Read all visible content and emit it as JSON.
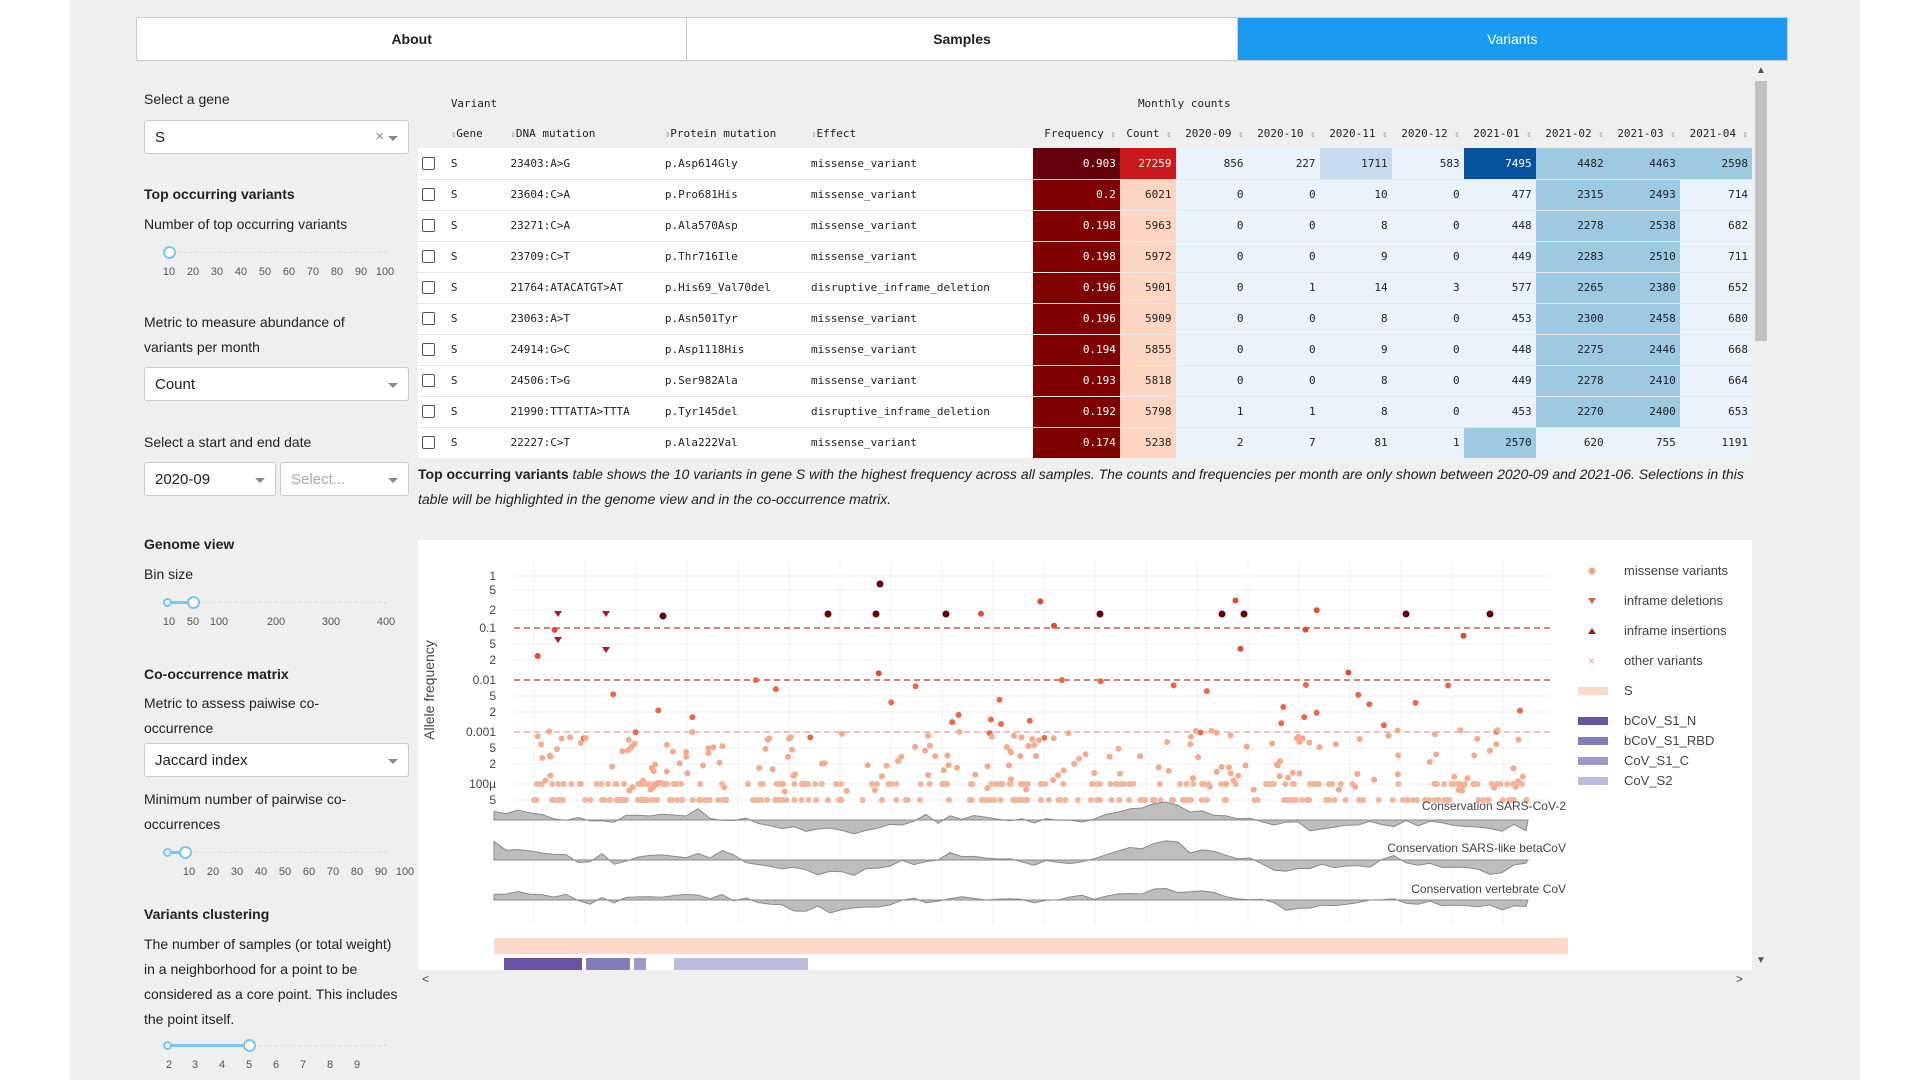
{
  "tabs": [
    {
      "label": "About",
      "active": false
    },
    {
      "label": "Samples",
      "active": false
    },
    {
      "label": "Variants",
      "active": true
    }
  ],
  "sidebar": {
    "gene_label": "Select a gene",
    "gene_value": "S",
    "gene_clear": "×",
    "top_header": "Top occurring variants",
    "top_number_label": "Number of top occurring variants",
    "top_ticks": [
      "10",
      "20",
      "30",
      "40",
      "50",
      "60",
      "70",
      "80",
      "90",
      "100"
    ],
    "top_value": 10,
    "metric_label": "Metric to measure abundance of variants per month",
    "metric_value": "Count",
    "date_label": "Select a start and end date",
    "date_start": "2020-09",
    "date_end_placeholder": "Select...",
    "genome_header": "Genome view",
    "bin_label": "Bin size",
    "bin_ticks": [
      "10",
      "50",
      "100",
      "200",
      "300",
      "400"
    ],
    "bin_value": 50,
    "cooc_header": "Co-occurrence matrix",
    "cooc_metric_label": "Metric to assess paiwise co-occurrence",
    "cooc_metric_value": "Jaccard index",
    "cooc_min_label": "Minimum number of pairwise co-occurrences",
    "cooc_ticks": [
      "10",
      "20",
      "30",
      "40",
      "50",
      "60",
      "70",
      "80",
      "90",
      "100"
    ],
    "cooc_value": 10,
    "cluster_header": "Variants clustering",
    "cluster_label": "The number of samples (or total weight) in a neighborhood for a point to be considered as a core point. This includes the point itself.",
    "cluster_ticks": [
      "2",
      "3",
      "4",
      "5",
      "6",
      "7",
      "8",
      "9"
    ],
    "cluster_value": 5
  },
  "table": {
    "group_variant": "Variant",
    "group_monthly": "Monthly counts",
    "columns": [
      "Gene",
      "DNA mutation",
      "Protein mutation",
      "Effect",
      "Frequency",
      "Count",
      "2020-09",
      "2020-10",
      "2020-11",
      "2020-12",
      "2021-01",
      "2021-02",
      "2021-03",
      "2021-04"
    ],
    "rows": [
      {
        "gene": "S",
        "dna": "23403:A>G",
        "protein": "p.Asp614Gly",
        "effect": "missense_variant",
        "freq": "0.903",
        "count": "27259",
        "months": [
          "856",
          "227",
          "1711",
          "583",
          "7495",
          "4482",
          "4463",
          "2598"
        ]
      },
      {
        "gene": "S",
        "dna": "23604:C>A",
        "protein": "p.Pro681His",
        "effect": "missense_variant",
        "freq": "0.2",
        "count": "6021",
        "months": [
          "0",
          "0",
          "10",
          "0",
          "477",
          "2315",
          "2493",
          "714"
        ]
      },
      {
        "gene": "S",
        "dna": "23271:C>A",
        "protein": "p.Ala570Asp",
        "effect": "missense_variant",
        "freq": "0.198",
        "count": "5963",
        "months": [
          "0",
          "0",
          "8",
          "0",
          "448",
          "2278",
          "2538",
          "682"
        ]
      },
      {
        "gene": "S",
        "dna": "23709:C>T",
        "protein": "p.Thr716Ile",
        "effect": "missense_variant",
        "freq": "0.198",
        "count": "5972",
        "months": [
          "0",
          "0",
          "9",
          "0",
          "449",
          "2283",
          "2510",
          "711"
        ]
      },
      {
        "gene": "S",
        "dna": "21764:ATACATGT>AT",
        "protein": "p.His69_Val70del",
        "effect": "disruptive_inframe_deletion",
        "freq": "0.196",
        "count": "5901",
        "months": [
          "0",
          "1",
          "14",
          "3",
          "577",
          "2265",
          "2380",
          "652"
        ]
      },
      {
        "gene": "S",
        "dna": "23063:A>T",
        "protein": "p.Asn501Tyr",
        "effect": "missense_variant",
        "freq": "0.196",
        "count": "5909",
        "months": [
          "0",
          "0",
          "8",
          "0",
          "453",
          "2300",
          "2458",
          "680"
        ]
      },
      {
        "gene": "S",
        "dna": "24914:G>C",
        "protein": "p.Asp1118His",
        "effect": "missense_variant",
        "freq": "0.194",
        "count": "5855",
        "months": [
          "0",
          "0",
          "9",
          "0",
          "448",
          "2275",
          "2446",
          "668"
        ]
      },
      {
        "gene": "S",
        "dna": "24506:T>G",
        "protein": "p.Ser982Ala",
        "effect": "missense_variant",
        "freq": "0.193",
        "count": "5818",
        "months": [
          "0",
          "0",
          "8",
          "0",
          "449",
          "2278",
          "2410",
          "664"
        ]
      },
      {
        "gene": "S",
        "dna": "21990:TTTATTA>TTTA",
        "protein": "p.Tyr145del",
        "effect": "disruptive_inframe_deletion",
        "freq": "0.192",
        "count": "5798",
        "months": [
          "1",
          "1",
          "8",
          "0",
          "453",
          "2270",
          "2400",
          "653"
        ]
      },
      {
        "gene": "S",
        "dna": "22227:C>T",
        "protein": "p.Ala222Val",
        "effect": "missense_variant",
        "freq": "0.174",
        "count": "5238",
        "months": [
          "2",
          "7",
          "81",
          "1",
          "2570",
          "620",
          "755",
          "1191"
        ]
      }
    ]
  },
  "caption": {
    "bold": "Top occurring variants",
    "text": " table shows the 10 variants in gene S with the highest frequency across all samples. The counts and frequencies per month are only shown between 2020-09 and 2021-06. Selections in this table will be highlighted in the genome view and in the co-occurrence matrix."
  },
  "plot": {
    "ylabel": "Allele frequency",
    "yticks": [
      "1",
      "5",
      "2",
      "0.1",
      "5",
      "2",
      "0.01",
      "5",
      "2",
      "0.001",
      "5",
      "2",
      "100µ",
      "5"
    ],
    "legend": [
      {
        "label": "missense variants",
        "symbol": "dot",
        "color": "#f4a582"
      },
      {
        "label": "inframe deletions",
        "symbol": "tri-down",
        "color": "#d6604d"
      },
      {
        "label": "inframe insertions",
        "symbol": "tri-up",
        "color": "#b2182b"
      },
      {
        "label": "other variants",
        "symbol": "x",
        "color": "#f4a582"
      },
      {
        "label": "S",
        "symbol": "band",
        "color": "#fcd9c8"
      },
      {
        "label": "bCoV_S1_N",
        "symbol": "band",
        "color": "#6a51a3"
      },
      {
        "label": "bCoV_S1_RBD",
        "symbol": "band",
        "color": "#807dba"
      },
      {
        "label": "CoV_S1_C",
        "symbol": "band",
        "color": "#9e9ac8"
      },
      {
        "label": "CoV_S2",
        "symbol": "band",
        "color": "#bcbddc"
      }
    ],
    "conservation": [
      "Conservation SARS-CoV-2",
      "Conservation SARS-like betaCoV",
      "Conservation vertebrate CoV"
    ]
  },
  "colors": {
    "accent": "#1a9af0",
    "freq_high": "#67000d",
    "count_high": "#cb181d",
    "month_dark": "#08519c",
    "month_mid": "#9ecae1",
    "month_light": "#eaf2fb"
  }
}
